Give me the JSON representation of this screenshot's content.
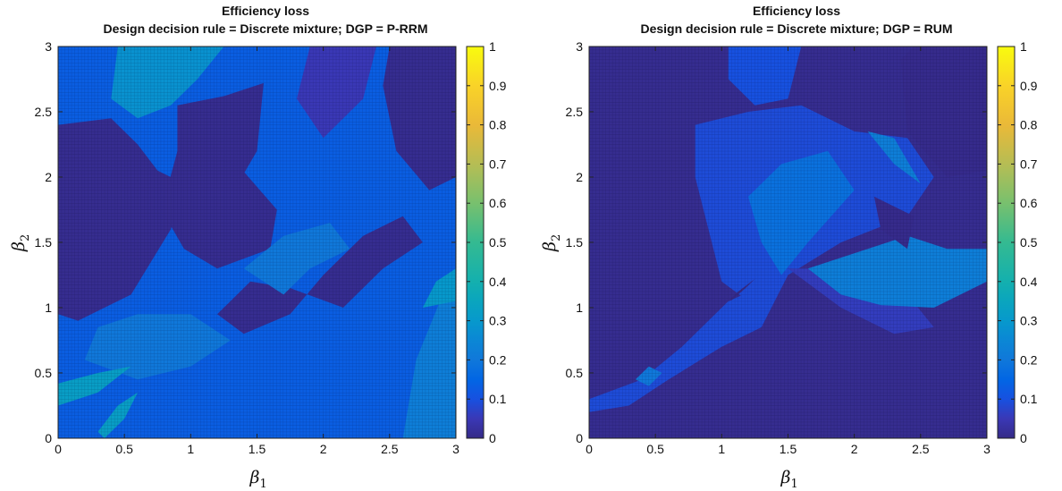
{
  "chart_data": [
    {
      "type": "heatmap",
      "title": "Efficiency loss",
      "subtitle": "Design decision rule = Discrete mixture; DGP = P-RRM",
      "xlabel": "β1",
      "ylabel": "β2",
      "xlim": [
        0,
        3
      ],
      "ylim": [
        0,
        3
      ],
      "x_ticks": [
        "0",
        "0.5",
        "1",
        "1.5",
        "2",
        "2.5",
        "3"
      ],
      "y_ticks": [
        "0",
        "0.5",
        "1",
        "1.5",
        "2",
        "2.5",
        "3"
      ],
      "grid_resolution": 0.025,
      "colormap": "parula",
      "colorbar": {
        "min": 0,
        "max": 1,
        "ticks": [
          "0",
          "0.1",
          "0.2",
          "0.3",
          "0.4",
          "0.5",
          "0.6",
          "0.7",
          "0.8",
          "0.9",
          "1"
        ]
      },
      "background_level": 0.13,
      "regions": [
        {
          "level": 0.01,
          "polygon": [
            [
              0.9,
              2.55
            ],
            [
              1.25,
              2.62
            ],
            [
              1.55,
              2.72
            ],
            [
              1.5,
              2.2
            ],
            [
              1.3,
              1.85
            ],
            [
              0.9,
              2.1
            ]
          ]
        },
        {
          "level": 0.01,
          "polygon": [
            [
              0,
              2.4
            ],
            [
              0.4,
              2.45
            ],
            [
              0.6,
              2.25
            ],
            [
              0.75,
              2.05
            ],
            [
              0.95,
              1.95
            ],
            [
              0.85,
              1.6
            ],
            [
              0.55,
              1.1
            ],
            [
              0.15,
              0.9
            ],
            [
              0,
              0.95
            ]
          ]
        },
        {
          "level": 0.01,
          "polygon": [
            [
              0.78,
              1.75
            ],
            [
              0.9,
              2.2
            ],
            [
              1.35,
              2.1
            ],
            [
              1.65,
              1.75
            ],
            [
              1.6,
              1.45
            ],
            [
              1.2,
              1.3
            ],
            [
              0.95,
              1.45
            ]
          ]
        },
        {
          "level": 0.01,
          "polygon": [
            [
              1.45,
              1.2
            ],
            [
              1.75,
              1.15
            ],
            [
              2.15,
              1.0
            ],
            [
              2.45,
              1.3
            ],
            [
              2.75,
              1.5
            ],
            [
              2.6,
              1.7
            ],
            [
              2.3,
              1.55
            ],
            [
              2.0,
              1.25
            ],
            [
              1.75,
              0.95
            ],
            [
              1.4,
              0.8
            ],
            [
              1.2,
              0.95
            ]
          ]
        },
        {
          "level": 0.01,
          "polygon": [
            [
              2.5,
              3.0
            ],
            [
              3.0,
              3.0
            ],
            [
              3.0,
              2.0
            ],
            [
              2.8,
              1.9
            ],
            [
              2.55,
              2.2
            ],
            [
              2.45,
              2.7
            ]
          ]
        },
        {
          "level": 0.05,
          "polygon": [
            [
              1.9,
              3.0
            ],
            [
              2.4,
              3.0
            ],
            [
              2.3,
              2.6
            ],
            [
              2.0,
              2.3
            ],
            [
              1.8,
              2.6
            ]
          ]
        },
        {
          "level": 0.2,
          "polygon": [
            [
              1.7,
              1.1
            ],
            [
              1.9,
              1.3
            ],
            [
              2.2,
              1.45
            ],
            [
              2.05,
              1.65
            ],
            [
              1.7,
              1.55
            ],
            [
              1.4,
              1.3
            ]
          ]
        },
        {
          "level": 0.2,
          "polygon": [
            [
              0.2,
              0.6
            ],
            [
              0.6,
              0.45
            ],
            [
              1.0,
              0.55
            ],
            [
              1.3,
              0.75
            ],
            [
              1.0,
              0.95
            ],
            [
              0.6,
              0.95
            ],
            [
              0.3,
              0.85
            ]
          ]
        },
        {
          "level": 0.28,
          "polygon": [
            [
              0.45,
              3.0
            ],
            [
              1.25,
              3.0
            ],
            [
              1.05,
              2.75
            ],
            [
              0.85,
              2.55
            ],
            [
              0.6,
              2.45
            ],
            [
              0.4,
              2.6
            ]
          ]
        },
        {
          "level": 0.32,
          "polygon": [
            [
              0,
              0.25
            ],
            [
              0.3,
              0.35
            ],
            [
              0.55,
              0.55
            ],
            [
              0.3,
              0.5
            ],
            [
              0,
              0.42
            ]
          ]
        },
        {
          "level": 0.32,
          "polygon": [
            [
              0.35,
              0
            ],
            [
              0.5,
              0.15
            ],
            [
              0.6,
              0.35
            ],
            [
              0.45,
              0.25
            ],
            [
              0.3,
              0.05
            ]
          ]
        },
        {
          "level": 0.22,
          "polygon": [
            [
              2.6,
              0
            ],
            [
              3.0,
              0
            ],
            [
              3.0,
              1.3
            ],
            [
              2.9,
              1.1
            ],
            [
              2.7,
              0.6
            ]
          ]
        },
        {
          "level": 0.3,
          "polygon": [
            [
              2.75,
              1.0
            ],
            [
              3.0,
              1.05
            ],
            [
              3.0,
              1.3
            ],
            [
              2.85,
              1.2
            ]
          ]
        }
      ]
    },
    {
      "type": "heatmap",
      "title": "Efficiency loss",
      "subtitle": "Design decision rule = Discrete mixture; DGP = RUM",
      "xlabel": "β1",
      "ylabel": "β2",
      "xlim": [
        0,
        3
      ],
      "ylim": [
        0,
        3
      ],
      "x_ticks": [
        "0",
        "0.5",
        "1",
        "1.5",
        "2",
        "2.5",
        "3"
      ],
      "y_ticks": [
        "0",
        "0.5",
        "1",
        "1.5",
        "2",
        "2.5",
        "3"
      ],
      "grid_resolution": 0.025,
      "colormap": "parula",
      "colorbar": {
        "min": 0,
        "max": 1,
        "ticks": [
          "0",
          "0.1",
          "0.2",
          "0.3",
          "0.4",
          "0.5",
          "0.6",
          "0.7",
          "0.8",
          "0.9",
          "1"
        ]
      },
      "background_level": 0.01,
      "regions": [
        {
          "level": 0.09,
          "polygon": [
            [
              0.8,
              2.4
            ],
            [
              1.2,
              2.5
            ],
            [
              1.6,
              2.55
            ],
            [
              2.0,
              2.35
            ],
            [
              2.4,
              2.3
            ],
            [
              2.6,
              2.0
            ],
            [
              2.4,
              1.7
            ],
            [
              1.9,
              1.5
            ],
            [
              1.5,
              1.25
            ],
            [
              1.2,
              1.05
            ],
            [
              1.0,
              1.2
            ],
            [
              0.9,
              1.6
            ],
            [
              0.8,
              2.0
            ]
          ]
        },
        {
          "level": 0.1,
          "polygon": [
            [
              1.05,
              3.0
            ],
            [
              1.6,
              3.0
            ],
            [
              1.5,
              2.6
            ],
            [
              1.25,
              2.55
            ],
            [
              1.05,
              2.75
            ]
          ]
        },
        {
          "level": 0.09,
          "polygon": [
            [
              1.05,
              1.05
            ],
            [
              1.5,
              1.25
            ],
            [
              1.3,
              0.85
            ],
            [
              1.0,
              0.7
            ],
            [
              0.6,
              0.45
            ],
            [
              0.3,
              0.25
            ],
            [
              0,
              0.2
            ],
            [
              0,
              0.3
            ],
            [
              0.4,
              0.45
            ],
            [
              0.7,
              0.7
            ]
          ]
        },
        {
          "level": 0.06,
          "polygon": [
            [
              1.5,
              1.3
            ],
            [
              1.9,
              1.0
            ],
            [
              2.3,
              0.8
            ],
            [
              2.6,
              0.85
            ],
            [
              2.4,
              1.1
            ],
            [
              2.0,
              1.3
            ]
          ]
        },
        {
          "level": 0.18,
          "polygon": [
            [
              1.2,
              1.85
            ],
            [
              1.45,
              2.1
            ],
            [
              1.8,
              2.2
            ],
            [
              2.0,
              1.9
            ],
            [
              1.65,
              1.5
            ],
            [
              1.45,
              1.25
            ],
            [
              1.3,
              1.5
            ]
          ]
        },
        {
          "level": 0.22,
          "polygon": [
            [
              1.65,
              1.3
            ],
            [
              1.95,
              1.4
            ],
            [
              2.4,
              1.55
            ],
            [
              2.7,
              1.45
            ],
            [
              3.0,
              1.45
            ],
            [
              3.0,
              1.2
            ],
            [
              2.6,
              1.0
            ],
            [
              2.2,
              1.02
            ],
            [
              1.9,
              1.1
            ]
          ]
        },
        {
          "level": 0.22,
          "polygon": [
            [
              2.1,
              2.35
            ],
            [
              2.3,
              2.1
            ],
            [
              2.5,
              1.95
            ],
            [
              2.3,
              2.3
            ]
          ]
        },
        {
          "level": 0.2,
          "polygon": [
            [
              0.35,
              0.45
            ],
            [
              0.45,
              0.4
            ],
            [
              0.55,
              0.5
            ],
            [
              0.45,
              0.55
            ]
          ]
        },
        {
          "level": 0.0,
          "polygon": [
            [
              1.05,
              1.05
            ],
            [
              1.12,
              1.12
            ],
            [
              1.25,
              1.22
            ],
            [
              1.18,
              1.15
            ],
            [
              1.08,
              1.06
            ]
          ]
        },
        {
          "level": 0.005,
          "polygon": [
            [
              2.35,
              2.9
            ],
            [
              2.45,
              3.0
            ],
            [
              3.0,
              3.0
            ],
            [
              3.0,
              2.05
            ],
            [
              2.7,
              2.0
            ],
            [
              2.4,
              2.35
            ]
          ]
        },
        {
          "level": 0.005,
          "polygon": [
            [
              2.15,
              1.85
            ],
            [
              2.45,
              1.7
            ],
            [
              2.4,
              1.45
            ],
            [
              2.2,
              1.6
            ]
          ]
        }
      ]
    }
  ]
}
